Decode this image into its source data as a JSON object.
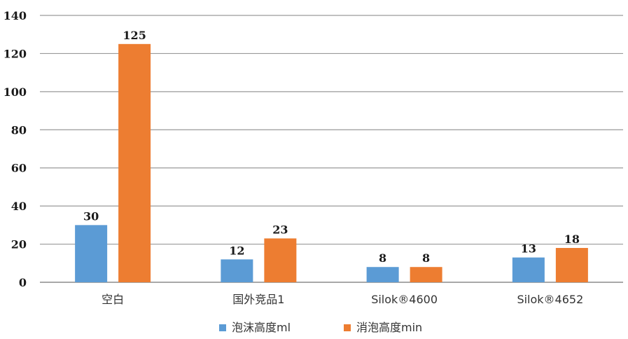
{
  "chart_data": {
    "type": "bar",
    "categories": [
      "空白",
      "国外竞品1",
      "Silok®4600",
      "Silok®4652"
    ],
    "series": [
      {
        "name": "泡沫高度ml",
        "values": [
          30,
          12,
          8,
          13
        ],
        "color": "#5B9BD5"
      },
      {
        "name": "消泡高度min",
        "values": [
          125,
          23,
          8,
          18
        ],
        "color": "#ED7D31"
      }
    ],
    "yticks": [
      "0",
      "20",
      "40",
      "60",
      "80",
      "100",
      "120",
      "140"
    ],
    "ylim": [
      0,
      140
    ],
    "grid": true,
    "legend_position": "bottom"
  }
}
